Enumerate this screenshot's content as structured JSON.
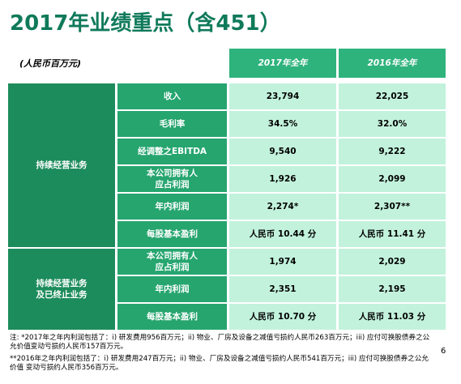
{
  "title": "2017年业绩重点（含451）",
  "unit": "(人民币百万元)",
  "table": {
    "headers": [
      "2017年全年",
      "2016年全年"
    ],
    "groups": [
      {
        "label": "持续经营业务",
        "rows": [
          {
            "metric": "收入",
            "values": [
              "23,794",
              "22,025"
            ]
          },
          {
            "metric": "毛利率",
            "values": [
              "34.5%",
              "32.0%"
            ]
          },
          {
            "metric": "经调整之EBITDA",
            "values": [
              "9,540",
              "9,222"
            ]
          },
          {
            "metric": "本公司拥有人\n应占利润",
            "values": [
              "1,926",
              "2,099"
            ]
          },
          {
            "metric": "年内利润",
            "values": [
              "2,274*",
              "2,307**"
            ]
          },
          {
            "metric": "每股基本盈利",
            "values": [
              "人民币 10.44 分",
              "人民币 11.41 分"
            ]
          }
        ]
      },
      {
        "label": "持续经营业务\n及已终止业务",
        "rows": [
          {
            "metric": "本公司拥有人\n应占利润",
            "values": [
              "1,974",
              "2,029"
            ]
          },
          {
            "metric": "年内利润",
            "values": [
              "2,351",
              "2,195"
            ]
          },
          {
            "metric": "每股基本盈利",
            "values": [
              "人民币 10.70 分",
              "人民币 11.03 分"
            ]
          }
        ]
      }
    ]
  },
  "notes": [
    "注: *2017年之年内利润包括了：i) 研发费用956百万元；ii) 物业、厂房及设备之减值亏损约人民币263百万元；iii) 应付可换股债券之公允价值变动亏损约人民币157百万元。",
    "**2016年之年内利润包括了：i) 研发费用247百万元；ii) 物业、厂房及设备之减值亏损约人民币541百万元；iii) 应付可换股债券之公允价值 变动亏损约人民币356百万元。"
  ],
  "page_number": "6"
}
